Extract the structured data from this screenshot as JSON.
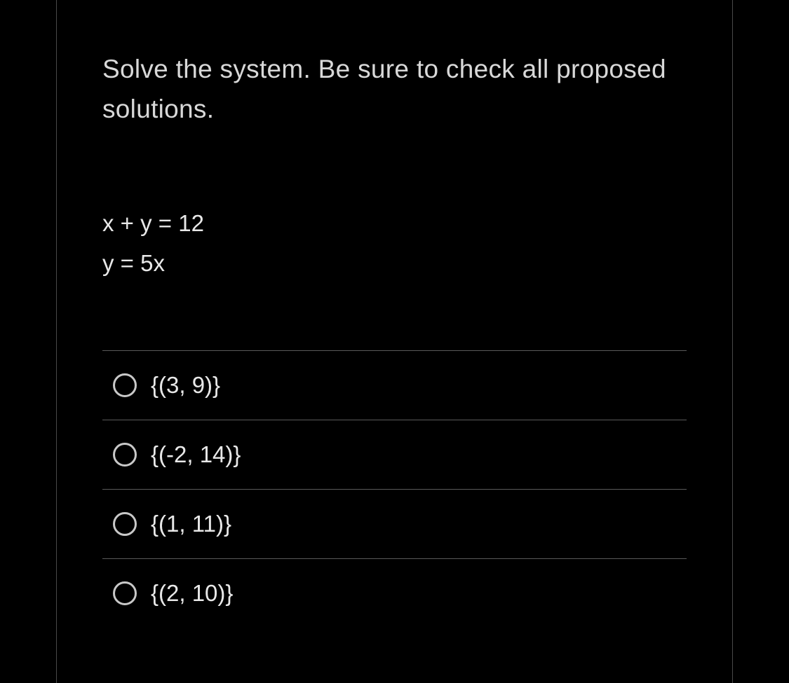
{
  "colors": {
    "background": "#000000",
    "text_primary": "#d8d8d8",
    "text_equation": "#e8e8e8",
    "text_option": "#e8e8e8",
    "border_panel": "#4a4a4a",
    "border_divider": "#5a5a5a",
    "radio_border": "#c8c8c8"
  },
  "typography": {
    "question_fontsize": 37,
    "equation_fontsize": 33,
    "option_fontsize": 33,
    "font_weight": 300
  },
  "question": {
    "prompt": "Solve the system. Be sure to check all proposed solutions.",
    "equations": [
      "x + y = 12",
      "y = 5x"
    ]
  },
  "options": [
    {
      "label": "{(3, 9)}",
      "selected": false
    },
    {
      "label": "{(-2, 14)}",
      "selected": false
    },
    {
      "label": "{(1, 11)}",
      "selected": false
    },
    {
      "label": "{(2, 10)}",
      "selected": false
    }
  ]
}
